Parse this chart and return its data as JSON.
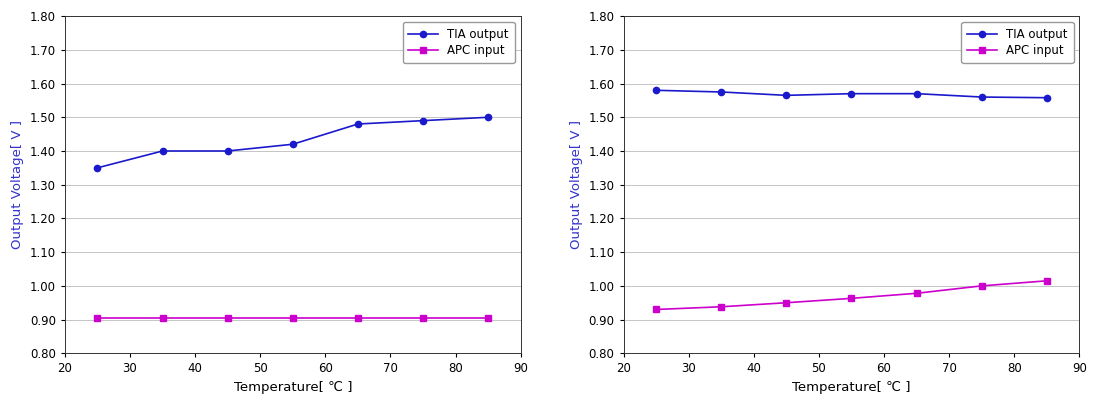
{
  "left": {
    "temp": [
      25,
      35,
      45,
      55,
      65,
      75,
      85
    ],
    "tia_output": [
      1.35,
      1.4,
      1.4,
      1.42,
      1.48,
      1.49,
      1.5
    ],
    "apc_input": [
      0.905,
      0.905,
      0.905,
      0.905,
      0.905,
      0.905,
      0.905
    ],
    "xlabel": "Temperature[ ℃ ]",
    "ylabel": "Output Voltage[ V ]",
    "xlim": [
      20,
      90
    ],
    "ylim": [
      0.8,
      1.8
    ],
    "yticks": [
      0.8,
      0.9,
      1.0,
      1.1,
      1.2,
      1.3,
      1.4,
      1.5,
      1.6,
      1.7,
      1.8
    ],
    "xticks": [
      20,
      30,
      40,
      50,
      60,
      70,
      80,
      90
    ]
  },
  "right": {
    "temp": [
      25,
      35,
      45,
      55,
      65,
      75,
      85
    ],
    "tia_output": [
      1.58,
      1.575,
      1.565,
      1.57,
      1.57,
      1.56,
      1.558
    ],
    "apc_input": [
      0.93,
      0.938,
      0.95,
      0.963,
      0.978,
      1.0,
      1.015
    ],
    "xlabel": "Temperature[ ℃ ]",
    "ylabel": "Output Voltage[ V ]",
    "xlim": [
      20,
      90
    ],
    "ylim": [
      0.8,
      1.8
    ],
    "yticks": [
      0.8,
      0.9,
      1.0,
      1.1,
      1.2,
      1.3,
      1.4,
      1.5,
      1.6,
      1.7,
      1.8
    ],
    "xticks": [
      20,
      30,
      40,
      50,
      60,
      70,
      80,
      90
    ]
  },
  "tia_color": "#1a1acc",
  "apc_color": "#cc00cc",
  "ylabel_color": "#3333cc",
  "tia_label": "TIA output",
  "apc_label": "APC input",
  "background_color": "#ffffff",
  "plot_bg_color": "#ffffff",
  "grid_color": "#bbbbbb",
  "legend_fontsize": 8.5,
  "axis_label_fontsize": 9.5,
  "tick_fontsize": 8.5,
  "marker_size": 4.5,
  "line_width": 1.2
}
